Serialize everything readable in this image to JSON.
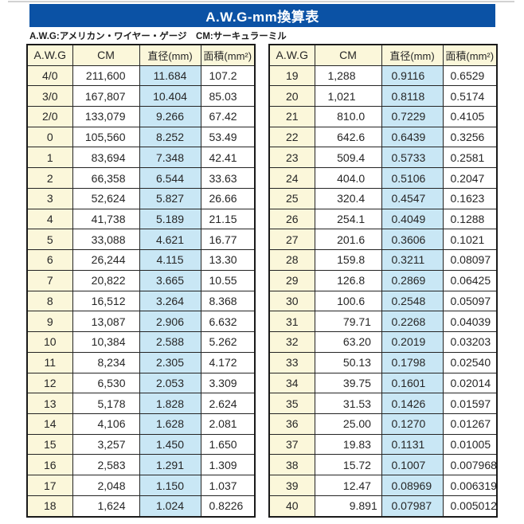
{
  "title": "A.W.G-mm換算表",
  "note": "A.W.G:アメリカン・ワイヤー・ゲージ　CM:サーキュラーミル",
  "colors": {
    "title_bar_bg": "#0B52A5",
    "title_text": "#FFFFFF",
    "header_cell_bg": "#FBF7DA",
    "awg_column_bg": "#FBF7DA",
    "diameter_column_bg": "#C9E7F5",
    "table_border": "#1A1A1A"
  },
  "left_table": {
    "columns": [
      "A.W.G",
      "CM",
      "直径(mm)",
      "面積(mm²)"
    ],
    "rows": [
      [
        "4/0",
        "211,600",
        "11.684",
        "107.2"
      ],
      [
        "3/0",
        "167,807",
        "10.404",
        "85.03"
      ],
      [
        "2/0",
        "133,079",
        "9.266",
        "67.42"
      ],
      [
        "0",
        "105,560",
        "8.252",
        "53.49"
      ],
      [
        "1",
        "83,694",
        "7.348",
        "42.41"
      ],
      [
        "2",
        "66,358",
        "6.544",
        "33.63"
      ],
      [
        "3",
        "52,624",
        "5.827",
        "26.66"
      ],
      [
        "4",
        "41,738",
        "5.189",
        "21.15"
      ],
      [
        "5",
        "33,088",
        "4.621",
        "16.77"
      ],
      [
        "6",
        "26,244",
        "4.115",
        "13.30"
      ],
      [
        "7",
        "20,822",
        "3.665",
        "10.55"
      ],
      [
        "8",
        "16,512",
        "3.264",
        "8.368"
      ],
      [
        "9",
        "13,087",
        "2.906",
        "6.632"
      ],
      [
        "10",
        "10,384",
        "2.588",
        "5.262"
      ],
      [
        "11",
        "8,234",
        "2.305",
        "4.172"
      ],
      [
        "12",
        "6,530",
        "2.053",
        "3.309"
      ],
      [
        "13",
        "5,178",
        "1.828",
        "2.624"
      ],
      [
        "14",
        "4,106",
        "1.628",
        "2.081"
      ],
      [
        "15",
        "3,257",
        "1.450",
        "1.650"
      ],
      [
        "16",
        "2,583",
        "1.291",
        "1.309"
      ],
      [
        "17",
        "2,048",
        "1.150",
        "1.037"
      ],
      [
        "18",
        "1,624",
        "1.024",
        "0.8226"
      ]
    ]
  },
  "right_table": {
    "columns": [
      "A.W.G",
      "CM",
      "直径(mm)",
      "面積(mm²)"
    ],
    "rows": [
      [
        "19",
        "1,288",
        "0.9116",
        "0.6529"
      ],
      [
        "20",
        "1,021",
        "0.8118",
        "0.5174"
      ],
      [
        "21",
        "810.0",
        "0.7229",
        "0.4105"
      ],
      [
        "22",
        "642.6",
        "0.6439",
        "0.3256"
      ],
      [
        "23",
        "509.4",
        "0.5733",
        "0.2581"
      ],
      [
        "24",
        "404.0",
        "0.5106",
        "0.2047"
      ],
      [
        "25",
        "320.4",
        "0.4547",
        "0.1623"
      ],
      [
        "26",
        "254.1",
        "0.4049",
        "0.1288"
      ],
      [
        "27",
        "201.6",
        "0.3606",
        "0.1021"
      ],
      [
        "28",
        "159.8",
        "0.3211",
        "0.08097"
      ],
      [
        "29",
        "126.8",
        "0.2869",
        "0.06425"
      ],
      [
        "30",
        "100.6",
        "0.2548",
        "0.05097"
      ],
      [
        "31",
        "79.71",
        "0.2268",
        "0.04039"
      ],
      [
        "32",
        "63.20",
        "0.2019",
        "0.03203"
      ],
      [
        "33",
        "50.13",
        "0.1798",
        "0.02540"
      ],
      [
        "34",
        "39.75",
        "0.1601",
        "0.02014"
      ],
      [
        "35",
        "31.53",
        "0.1426",
        "0.01597"
      ],
      [
        "36",
        "25.00",
        "0.1270",
        "0.01267"
      ],
      [
        "37",
        "19.83",
        "0.1131",
        "0.01005"
      ],
      [
        "38",
        "15.72",
        "0.1007",
        "0.007968"
      ],
      [
        "39",
        "12.47",
        "0.08969",
        "0.006319"
      ],
      [
        "40",
        "9.891",
        "0.07987",
        "0.005012"
      ]
    ]
  }
}
